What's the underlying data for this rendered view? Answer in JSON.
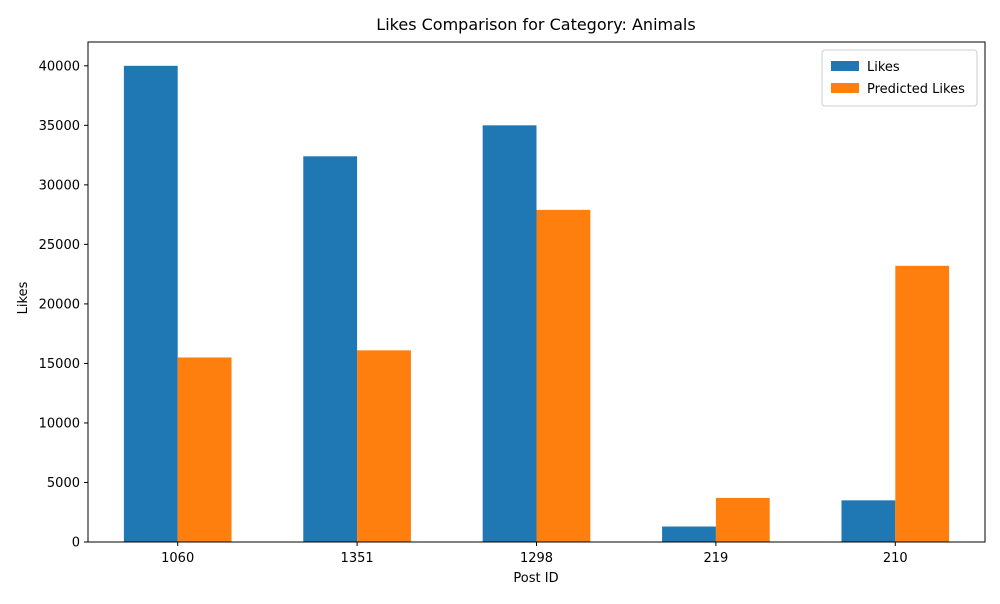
{
  "chart_data": {
    "type": "bar",
    "title": "Likes Comparison for Category: Animals",
    "xlabel": "Post ID",
    "ylabel": "Likes",
    "categories": [
      "1060",
      "1351",
      "1298",
      "219",
      "210"
    ],
    "series": [
      {
        "name": "Likes",
        "color": "#1f77b4",
        "values": [
          40000,
          32400,
          35000,
          1300,
          3500
        ]
      },
      {
        "name": "Predicted Likes",
        "color": "#ff7f0e",
        "values": [
          15500,
          16100,
          27900,
          3700,
          23200
        ]
      }
    ],
    "ylim": [
      0,
      42000
    ],
    "yticks": [
      0,
      5000,
      10000,
      15000,
      20000,
      25000,
      30000,
      35000,
      40000
    ],
    "grid": false,
    "legend_position": "top-right"
  }
}
